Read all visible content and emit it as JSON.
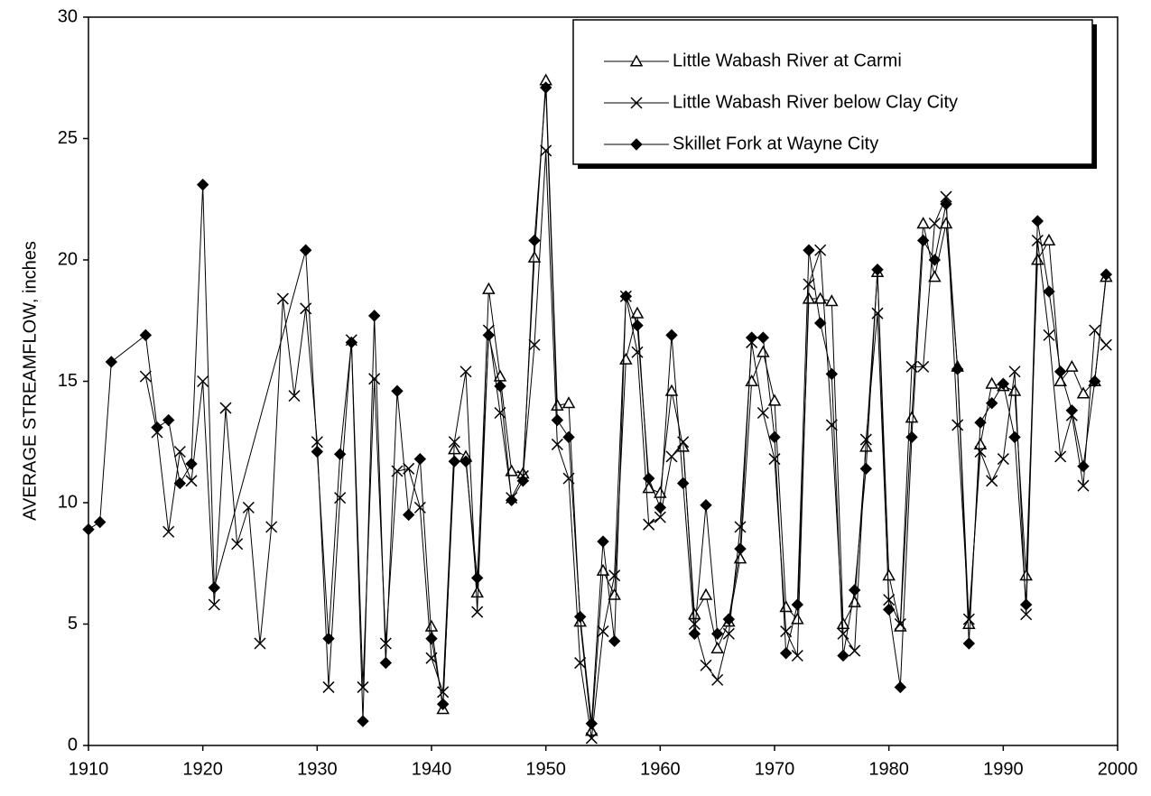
{
  "chart_data": {
    "type": "line",
    "ylabel": "AVERAGE STREAMFLOW, inches",
    "xlim": [
      1910,
      2000
    ],
    "xticks": [
      1910,
      1920,
      1930,
      1940,
      1950,
      1960,
      1970,
      1980,
      1990,
      2000
    ],
    "ylim": [
      0,
      30
    ],
    "yticks": [
      0,
      5,
      10,
      15,
      20,
      25,
      30
    ],
    "legend": "upper right",
    "series": [
      {
        "name": "Little Wabash River at Carmi",
        "color": "#000000",
        "marker": "triangle",
        "x": [
          1940,
          1941,
          1942,
          1943,
          1944,
          1945,
          1946,
          1947,
          1948,
          1949,
          1950,
          1951,
          1952,
          1953,
          1954,
          1955,
          1956,
          1957,
          1958,
          1959,
          1960,
          1961,
          1962,
          1963,
          1964,
          1965,
          1966,
          1967,
          1968,
          1969,
          1970,
          1971,
          1972,
          1973,
          1974,
          1975,
          1976,
          1977,
          1978,
          1979,
          1980,
          1981,
          1982,
          1983,
          1984,
          1985,
          1986,
          1987,
          1988,
          1989,
          1990,
          1991,
          1992,
          1993,
          1994,
          1995,
          1996,
          1997,
          1998,
          1999
        ],
        "values": [
          4.9,
          1.5,
          12.2,
          11.9,
          6.3,
          18.8,
          15.2,
          11.3,
          11.2,
          20.1,
          27.4,
          14.0,
          14.1,
          5.1,
          0.6,
          7.2,
          6.2,
          15.9,
          17.8,
          10.6,
          10.4,
          14.6,
          12.3,
          5.4,
          6.2,
          4.0,
          5.1,
          7.7,
          15.0,
          16.2,
          14.2,
          5.7,
          5.2,
          18.4,
          18.4,
          18.3,
          5.0,
          5.9,
          12.3,
          19.5,
          7.0,
          4.9,
          13.5,
          21.5,
          19.3,
          21.5,
          15.6,
          5.0,
          12.4,
          14.9,
          14.8,
          14.6,
          7.0,
          20.0,
          20.8,
          15.0,
          15.6,
          14.5,
          15.0,
          19.3
        ]
      },
      {
        "name": "Little Wabash River below Clay City",
        "color": "#000000",
        "marker": "x",
        "x": [
          1915,
          1916,
          1917,
          1918,
          1919,
          1920,
          1921,
          1922,
          1923,
          1924,
          1925,
          1926,
          1927,
          1928,
          1929,
          1930,
          1931,
          1932,
          1933,
          1934,
          1935,
          1936,
          1937,
          1938,
          1939,
          1940,
          1941,
          1942,
          1943,
          1944,
          1945,
          1946,
          1947,
          1948,
          1949,
          1950,
          1951,
          1952,
          1953,
          1954,
          1955,
          1956,
          1957,
          1958,
          1959,
          1960,
          1961,
          1962,
          1963,
          1964,
          1965,
          1966,
          1967,
          1968,
          1969,
          1970,
          1971,
          1972,
          1973,
          1974,
          1975,
          1976,
          1977,
          1978,
          1979,
          1980,
          1981,
          1982,
          1983,
          1984,
          1985,
          1986,
          1987,
          1988,
          1989,
          1990,
          1991,
          1992,
          1993,
          1994,
          1995,
          1996,
          1997,
          1998,
          1999
        ],
        "values": [
          15.2,
          12.9,
          8.8,
          12.1,
          10.9,
          15.0,
          5.8,
          13.9,
          8.3,
          9.8,
          4.2,
          9.0,
          18.4,
          14.4,
          18.0,
          12.5,
          2.4,
          10.2,
          16.7,
          2.4,
          15.1,
          4.2,
          11.3,
          11.4,
          9.8,
          3.6,
          2.2,
          12.5,
          15.4,
          5.5,
          17.1,
          13.7,
          10.2,
          11.1,
          16.5,
          24.5,
          12.4,
          11.0,
          3.4,
          0.3,
          4.7,
          7.0,
          18.5,
          16.2,
          9.1,
          9.4,
          11.9,
          12.5,
          5.0,
          3.3,
          2.7,
          4.6,
          9.0,
          16.6,
          13.7,
          11.8,
          4.7,
          3.7,
          19.0,
          20.4,
          13.2,
          4.6,
          3.9,
          12.6,
          17.8,
          6.0,
          5.0,
          15.6,
          15.6,
          21.5,
          22.6,
          13.2,
          5.2,
          12.1,
          10.9,
          11.8,
          15.4,
          5.4,
          20.8,
          16.9,
          11.9,
          13.6,
          10.7,
          17.1,
          16.5
        ]
      },
      {
        "name": "Skillet Fork at Wayne City",
        "color": "#000000",
        "marker": "diamond",
        "x": [
          1910,
          1911,
          1912,
          1915,
          1916,
          1917,
          1918,
          1919,
          1920,
          1921,
          1929,
          1930,
          1931,
          1932,
          1933,
          1934,
          1935,
          1936,
          1937,
          1938,
          1939,
          1940,
          1941,
          1942,
          1943,
          1944,
          1945,
          1946,
          1947,
          1948,
          1949,
          1950,
          1951,
          1952,
          1953,
          1954,
          1955,
          1956,
          1957,
          1958,
          1959,
          1960,
          1961,
          1962,
          1963,
          1964,
          1965,
          1966,
          1967,
          1968,
          1969,
          1970,
          1971,
          1972,
          1973,
          1974,
          1975,
          1976,
          1977,
          1978,
          1979,
          1980,
          1981,
          1982,
          1983,
          1984,
          1985,
          1986,
          1987,
          1988,
          1989,
          1990,
          1991,
          1992,
          1993,
          1994,
          1995,
          1996,
          1997,
          1998,
          1999
        ],
        "values": [
          8.9,
          9.2,
          15.8,
          16.9,
          13.1,
          13.4,
          10.8,
          11.6,
          23.1,
          6.5,
          20.4,
          12.1,
          4.4,
          12.0,
          16.6,
          1.0,
          17.7,
          3.4,
          14.6,
          9.5,
          11.8,
          4.4,
          1.7,
          11.7,
          11.7,
          6.9,
          16.9,
          14.8,
          10.1,
          10.9,
          20.8,
          27.1,
          13.4,
          12.7,
          5.3,
          0.9,
          8.4,
          4.3,
          18.5,
          17.3,
          11.0,
          9.8,
          16.9,
          10.8,
          4.6,
          9.9,
          4.6,
          5.2,
          8.1,
          16.8,
          16.8,
          12.7,
          3.8,
          5.8,
          20.4,
          17.4,
          15.3,
          3.7,
          6.4,
          11.4,
          19.6,
          5.6,
          2.4,
          12.7,
          20.8,
          20.0,
          22.3,
          15.5,
          4.2,
          13.3,
          14.1,
          14.9,
          12.7,
          5.8,
          21.6,
          18.7,
          15.4,
          13.8,
          11.5,
          15.0,
          19.4
        ]
      }
    ]
  }
}
